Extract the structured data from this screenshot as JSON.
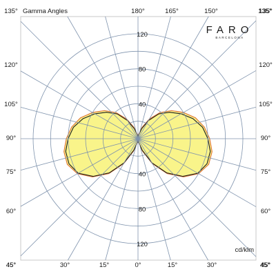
{
  "chart_data": {
    "type": "polar",
    "title": "Gamma Angles",
    "unit": "cd/klm",
    "brand": {
      "name": "FARO",
      "sub": "BARCELONA"
    },
    "radial_ticks": [
      40,
      80,
      120
    ],
    "r_max": 120,
    "angle_labels": {
      "top": [
        "180°",
        "165°",
        "150°",
        "135°"
      ],
      "left": [
        "135°",
        "120°",
        "105°",
        "90°",
        "75°",
        "60°",
        "45°"
      ],
      "right": [
        "135°",
        "120°",
        "105°",
        "90°",
        "75°",
        "60°",
        "45°"
      ],
      "bottom": [
        "45°",
        "30°",
        "15°",
        "0°",
        "15°",
        "30°",
        "45°"
      ]
    },
    "colors": {
      "fill": "#f9f48a",
      "series_outer": "#e07a3a",
      "series_inner": "#1a1a1a",
      "grid": "#7f93ad",
      "frame": "#c8c8c8"
    },
    "series": [
      {
        "gamma": [
          0,
          10,
          20,
          30,
          40,
          50,
          60,
          70,
          80,
          90,
          100,
          110,
          120,
          130,
          140,
          150,
          160,
          170,
          175,
          180
        ],
        "values": [
          0,
          4,
          15,
          33,
          52,
          68,
          80,
          86,
          86,
          82,
          77,
          70,
          60,
          50,
          39,
          26,
          14,
          5,
          2,
          0
        ]
      },
      {
        "gamma": [
          0,
          10,
          20,
          30,
          40,
          50,
          60,
          70,
          80,
          90,
          100,
          110,
          120,
          130,
          140,
          150,
          160,
          170,
          175,
          180
        ],
        "values": [
          0,
          4,
          14,
          32,
          51,
          67,
          79,
          84,
          84,
          80,
          75,
          67,
          57,
          47,
          37,
          24,
          12,
          4,
          1,
          0
        ]
      }
    ]
  }
}
